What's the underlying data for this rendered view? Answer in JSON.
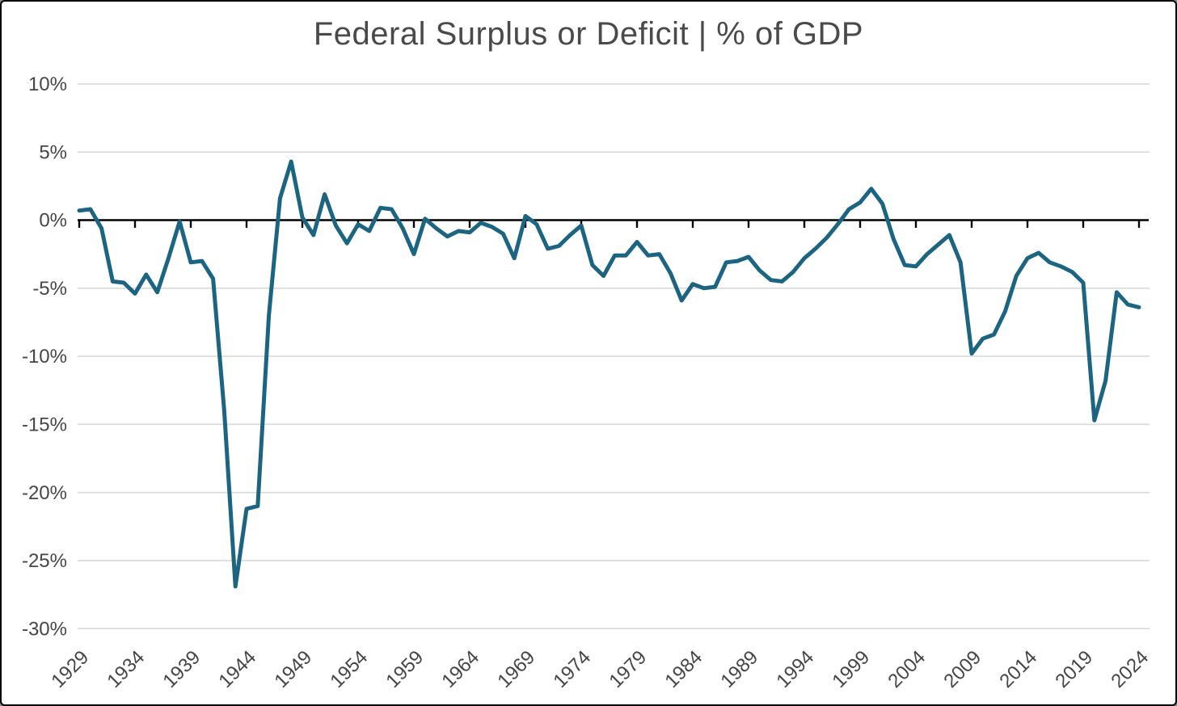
{
  "chart_data": {
    "type": "line",
    "title": "Federal Surplus or Deficit | % of GDP",
    "xlabel": "",
    "ylabel": "",
    "grid": true,
    "legend": false,
    "ylim": [
      -30,
      10
    ],
    "xlim": [
      1929,
      2024
    ],
    "y_ticks": [
      10,
      5,
      0,
      -5,
      -10,
      -15,
      -20,
      -25,
      -30
    ],
    "y_tick_labels": [
      "10%",
      "5%",
      "0%",
      "-5%",
      "-10%",
      "-15%",
      "-20%",
      "-25%",
      "-30%"
    ],
    "x_ticks": [
      1929,
      1934,
      1939,
      1944,
      1949,
      1954,
      1959,
      1964,
      1969,
      1974,
      1979,
      1984,
      1989,
      1994,
      1999,
      2004,
      2009,
      2014,
      2019,
      2024
    ],
    "x_tick_labels": [
      "1929",
      "1934",
      "1939",
      "1944",
      "1949",
      "1954",
      "1959",
      "1964",
      "1969",
      "1974",
      "1979",
      "1984",
      "1989",
      "1994",
      "1999",
      "2004",
      "2009",
      "2014",
      "2019",
      "2024"
    ],
    "x": [
      1929,
      1930,
      1931,
      1932,
      1933,
      1934,
      1935,
      1936,
      1937,
      1938,
      1939,
      1940,
      1941,
      1942,
      1943,
      1944,
      1945,
      1946,
      1947,
      1948,
      1949,
      1950,
      1951,
      1952,
      1953,
      1954,
      1955,
      1956,
      1957,
      1958,
      1959,
      1960,
      1961,
      1962,
      1963,
      1964,
      1965,
      1966,
      1967,
      1968,
      1969,
      1970,
      1971,
      1972,
      1973,
      1974,
      1975,
      1976,
      1977,
      1978,
      1979,
      1980,
      1981,
      1982,
      1983,
      1984,
      1985,
      1986,
      1987,
      1988,
      1989,
      1990,
      1991,
      1992,
      1993,
      1994,
      1995,
      1996,
      1997,
      1998,
      1999,
      2000,
      2001,
      2002,
      2003,
      2004,
      2005,
      2006,
      2007,
      2008,
      2009,
      2010,
      2011,
      2012,
      2013,
      2014,
      2015,
      2016,
      2017,
      2018,
      2019,
      2020,
      2021,
      2022,
      2023,
      2024
    ],
    "series": [
      {
        "name": "Federal surplus or deficit, percent of GDP",
        "values": [
          0.7,
          0.8,
          -0.6,
          -4.5,
          -4.6,
          -5.4,
          -4.0,
          -5.3,
          -2.8,
          -0.1,
          -3.1,
          -3.0,
          -4.3,
          -14.0,
          -26.9,
          -21.2,
          -21.0,
          -7.0,
          1.6,
          4.3,
          0.2,
          -1.1,
          1.9,
          -0.4,
          -1.7,
          -0.3,
          -0.8,
          0.9,
          0.8,
          -0.6,
          -2.5,
          0.1,
          -0.6,
          -1.2,
          -0.8,
          -0.9,
          -0.2,
          -0.5,
          -1.0,
          -2.8,
          0.3,
          -0.3,
          -2.1,
          -1.9,
          -1.1,
          -0.4,
          -3.3,
          -4.1,
          -2.6,
          -2.6,
          -1.6,
          -2.6,
          -2.5,
          -3.9,
          -5.9,
          -4.7,
          -5.0,
          -4.9,
          -3.1,
          -3.0,
          -2.7,
          -3.7,
          -4.4,
          -4.5,
          -3.8,
          -2.8,
          -2.1,
          -1.3,
          -0.3,
          0.8,
          1.3,
          2.3,
          1.2,
          -1.4,
          -3.3,
          -3.4,
          -2.5,
          -1.8,
          -1.1,
          -3.1,
          -9.8,
          -8.7,
          -8.4,
          -6.7,
          -4.1,
          -2.8,
          -2.4,
          -3.1,
          -3.4,
          -3.8,
          -4.6,
          -14.7,
          -11.8,
          -5.3,
          -6.2,
          -6.4
        ]
      }
    ],
    "colors": {
      "line": "#1b6482",
      "grid": "#d9d9d9",
      "axis": "#000000",
      "labels": "#464646",
      "title": "#4a4a4a",
      "background": "#ffffff"
    }
  }
}
